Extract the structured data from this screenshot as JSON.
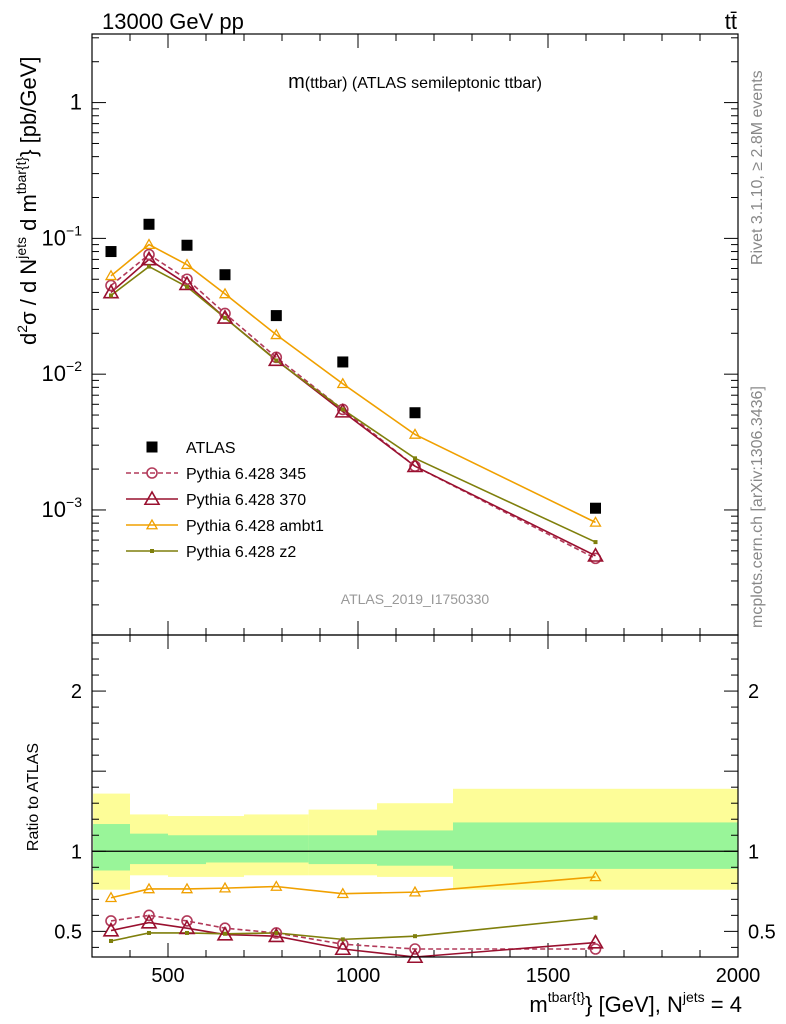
{
  "header": {
    "left": "13000 GeV pp",
    "right": "tt̄"
  },
  "side_labels": {
    "rivet": "Rivet 3.1.10, ≥ 2.8M events",
    "mcplots": "mcplots.cern.ch [arXiv:1306.3436]"
  },
  "watermark": "ATLAS_2019_I1750330",
  "chart_data": [
    {
      "type": "scatter",
      "panel": "main",
      "title": "m(ttbar) (ATLAS semileptonic ttbar)",
      "title_main": "m",
      "title_rest": "(ttbar) (ATLAS semileptonic ttbar)",
      "ylabel": {
        "a": "d",
        "b": "2",
        "c": "σ  /  d N",
        "d": "jets",
        "e": " d m",
        "f": "tbar{t}",
        "g": "} [pb/GeV]"
      },
      "xlabel": {
        "a": "m",
        "b": "tbar{t}",
        "c": "} [GeV], N",
        "d": "jets",
        "e": " = 4"
      },
      "yscale": "log",
      "xlim": [
        300,
        2000
      ],
      "ylim": [
        0.00012,
        3.2
      ],
      "y_ticks": [
        {
          "v": 0.001,
          "m": "10",
          "e": "−3"
        },
        {
          "v": 0.01,
          "m": "10",
          "e": "−2"
        },
        {
          "v": 0.1,
          "m": "10",
          "e": "−1"
        },
        {
          "v": 1,
          "m": "1",
          "e": ""
        }
      ],
      "x": [
        350,
        450,
        550,
        650,
        785,
        960,
        1150,
        1625
      ],
      "series": [
        {
          "name": "ATLAS",
          "color": "#000000",
          "marker": "square",
          "style": "none",
          "values": [
            0.08,
            0.127,
            0.089,
            0.054,
            0.027,
            0.0123,
            0.0052,
            0.00103
          ]
        },
        {
          "name": "Pythia 6.428 345",
          "color": "#b23a5a",
          "marker": "circle",
          "style": "dashed",
          "values": [
            0.045,
            0.076,
            0.05,
            0.028,
            0.0133,
            0.0055,
            0.0021,
            0.00044
          ]
        },
        {
          "name": "Pythia 6.428 370",
          "color": "#99102f",
          "marker": "triangle",
          "style": "solid",
          "values": [
            0.04,
            0.07,
            0.046,
            0.026,
            0.0127,
            0.0053,
            0.0021,
            0.00046
          ]
        },
        {
          "name": "Pythia 6.428 ambt1",
          "color": "#f0a000",
          "marker": "triangle-small",
          "style": "solid",
          "values": [
            0.053,
            0.09,
            0.064,
            0.039,
            0.0195,
            0.0085,
            0.0036,
            0.00081
          ]
        },
        {
          "name": "Pythia 6.428 z2",
          "color": "#7f7f0c",
          "marker": "dot",
          "style": "solid",
          "values": [
            0.038,
            0.062,
            0.044,
            0.026,
            0.0126,
            0.0055,
            0.0024,
            0.00058
          ]
        }
      ]
    },
    {
      "type": "line",
      "panel": "ratio",
      "ylabel": "Ratio to ATLAS",
      "xlim": [
        300,
        2000
      ],
      "ylim": [
        0.34,
        2.35
      ],
      "y_ticks": [
        0.5,
        1,
        2
      ],
      "x_ticks": [
        500,
        1000,
        1500,
        2000
      ],
      "bin_edges": [
        300,
        400,
        500,
        600,
        700,
        870,
        1050,
        1250,
        2000
      ],
      "bands": {
        "inner": [
          [
            0.88,
            1.17
          ],
          [
            0.92,
            1.11
          ],
          [
            0.92,
            1.1
          ],
          [
            0.93,
            1.1
          ],
          [
            0.93,
            1.1
          ],
          [
            0.92,
            1.1
          ],
          [
            0.91,
            1.13
          ],
          [
            0.89,
            1.18
          ]
        ],
        "outer": [
          [
            0.76,
            1.36
          ],
          [
            0.85,
            1.23
          ],
          [
            0.84,
            1.22
          ],
          [
            0.84,
            1.22
          ],
          [
            0.85,
            1.23
          ],
          [
            0.85,
            1.26
          ],
          [
            0.84,
            1.3
          ],
          [
            0.76,
            1.39
          ]
        ],
        "inner_color": "#99f599",
        "outer_color": "#fdfd98"
      },
      "reference_line": 1,
      "x": [
        350,
        450,
        550,
        650,
        785,
        960,
        1150,
        1625
      ],
      "series": [
        {
          "name": "Pythia 6.428 345",
          "color": "#b23a5a",
          "marker": "circle",
          "style": "dashed",
          "values": [
            0.565,
            0.6,
            0.565,
            0.52,
            0.49,
            0.42,
            0.39,
            0.39
          ]
        },
        {
          "name": "Pythia 6.428 370",
          "color": "#99102f",
          "marker": "triangle",
          "style": "solid",
          "values": [
            0.505,
            0.555,
            0.52,
            0.48,
            0.47,
            0.39,
            0.34,
            0.43
          ]
        },
        {
          "name": "Pythia 6.428 ambt1",
          "color": "#f0a000",
          "marker": "triangle-small",
          "style": "solid",
          "values": [
            0.71,
            0.765,
            0.765,
            0.77,
            0.78,
            0.735,
            0.745,
            0.84
          ]
        },
        {
          "name": "Pythia 6.428 z2",
          "color": "#7f7f0c",
          "marker": "dot",
          "style": "solid",
          "values": [
            0.44,
            0.49,
            0.49,
            0.485,
            0.49,
            0.45,
            0.47,
            0.585
          ]
        }
      ]
    }
  ]
}
